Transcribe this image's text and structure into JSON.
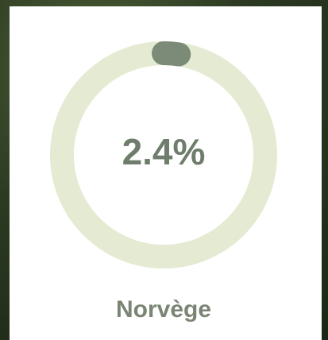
{
  "chart_data": {
    "type": "donut",
    "categories": [
      "Norvège"
    ],
    "values": [
      2.4
    ],
    "value_labels": [
      "2.4%"
    ],
    "ylim": [
      0,
      100
    ],
    "color": "#7b8b78",
    "track_color": "#e4ebd2"
  }
}
